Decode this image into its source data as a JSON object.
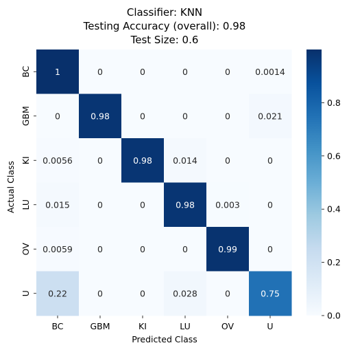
{
  "chart_data": {
    "type": "heatmap",
    "title_lines": [
      "Classifier: KNN",
      "Testing Accuracy (overall): 0.98",
      "Test Size: 0.6"
    ],
    "xlabel": "Predicted Class",
    "ylabel": "Actual Class",
    "x_categories": [
      "BC",
      "GBM",
      "KI",
      "LU",
      "OV",
      "U"
    ],
    "y_categories": [
      "BC",
      "GBM",
      "KI",
      "LU",
      "OV",
      "U"
    ],
    "values": [
      [
        1.0,
        0.0,
        0.0,
        0.0,
        0.0,
        0.0014
      ],
      [
        0.0,
        0.98,
        0.0,
        0.0,
        0.0,
        0.021
      ],
      [
        0.0056,
        0.0,
        0.98,
        0.014,
        0.0,
        0.0
      ],
      [
        0.015,
        0.0,
        0.0,
        0.98,
        0.003,
        0.0
      ],
      [
        0.0059,
        0.0,
        0.0,
        0.0,
        0.99,
        0.0
      ],
      [
        0.22,
        0.0,
        0.0,
        0.028,
        0.0,
        0.75
      ]
    ],
    "cell_labels": [
      [
        "1",
        "0",
        "0",
        "0",
        "0",
        "0.0014"
      ],
      [
        "0",
        "0.98",
        "0",
        "0",
        "0",
        "0.021"
      ],
      [
        "0.0056",
        "0",
        "0.98",
        "0.014",
        "0",
        "0"
      ],
      [
        "0.015",
        "0",
        "0",
        "0.98",
        "0.003",
        "0"
      ],
      [
        "0.0059",
        "0",
        "0",
        "0",
        "0.99",
        "0"
      ],
      [
        "0.22",
        "0",
        "0",
        "0.028",
        "0",
        "0.75"
      ]
    ],
    "colormap": "Blues",
    "colorbar": {
      "range": [
        0.0,
        1.0
      ],
      "ticks": [
        0.0,
        0.2,
        0.4,
        0.6,
        0.8
      ],
      "tick_labels": [
        "0.0",
        "0.2",
        "0.4",
        "0.6",
        "0.8"
      ]
    }
  }
}
